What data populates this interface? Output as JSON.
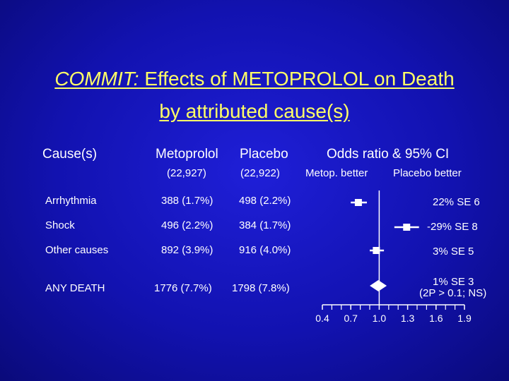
{
  "title": {
    "prefix": "COMMIT:",
    "line1_rest": " Effects of METOPROLOL on Death",
    "line2": "by attributed cause(s)"
  },
  "headers": {
    "cause": "Cause(s)",
    "metoprolol": "Metoprolol",
    "placebo": "Placebo",
    "metoprolol_n": "(22,927)",
    "placebo_n": "(22,922)",
    "odds": "Odds ratio & 95% CI",
    "better_left": "Metop. better",
    "better_right": "Placebo better"
  },
  "rows": [
    {
      "cause": "Arrhythmia",
      "metoprolol": "388 (1.7%)",
      "placebo": "498 (2.2%)",
      "stat": "22% SE 6"
    },
    {
      "cause": "Shock",
      "metoprolol": "496 (2.2%)",
      "placebo": "384 (1.7%)",
      "stat": "-29% SE 8"
    },
    {
      "cause": "Other causes",
      "metoprolol": "892 (3.9%)",
      "placebo": "916 (4.0%)",
      "stat": "3% SE 5"
    },
    {
      "cause": "ANY DEATH",
      "metoprolol": "1776 (7.7%)",
      "placebo": "1798 (7.8%)",
      "stat_line1": "1% SE 3",
      "stat_line2": "(2P > 0.1; NS)"
    }
  ],
  "chart_data": {
    "type": "scatter",
    "title": "Odds ratio & 95% CI",
    "x_ticks": [
      "0.4",
      "0.7",
      "1.0",
      "1.3",
      "1.6",
      "1.9"
    ],
    "x_range": [
      0.4,
      1.9
    ],
    "reference_line": 1.0,
    "series": [
      {
        "label": "Arrhythmia",
        "or": 0.78,
        "ci_low": 0.7,
        "ci_high": 0.87,
        "marker": "square"
      },
      {
        "label": "Shock",
        "or": 1.29,
        "ci_low": 1.16,
        "ci_high": 1.42,
        "marker": "square"
      },
      {
        "label": "Other causes",
        "or": 0.97,
        "ci_low": 0.9,
        "ci_high": 1.05,
        "marker": "square"
      },
      {
        "label": "ANY DEATH",
        "or": 0.99,
        "ci_low": 0.93,
        "ci_high": 1.05,
        "marker": "diamond"
      }
    ]
  },
  "colors": {
    "title": "#ffff66",
    "text": "#ffffff",
    "background": "#1414b8"
  }
}
